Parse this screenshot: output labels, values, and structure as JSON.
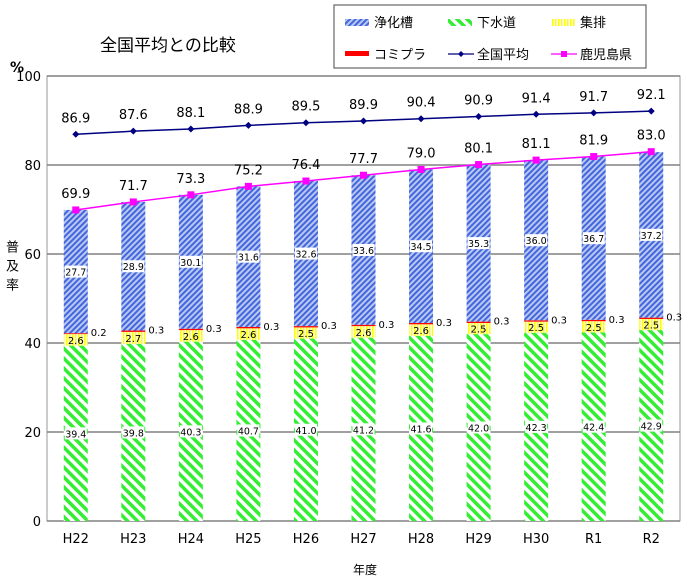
{
  "chart_data": {
    "type": "bar",
    "title": "全国平均との比較",
    "xlabel": "年度",
    "ylabel": "普及率",
    "yunit": "%",
    "ylim": [
      0,
      100
    ],
    "yticks": [
      0,
      20,
      40,
      60,
      80,
      100
    ],
    "grid": true,
    "legend_placement": "top-right",
    "categories": [
      "H22",
      "H23",
      "H24",
      "H25",
      "H26",
      "H27",
      "H28",
      "H29",
      "H30",
      "R1",
      "R2"
    ],
    "stacked_series": [
      {
        "name": "下水道",
        "color": "#33ee33",
        "values": [
          39.4,
          39.8,
          40.3,
          40.7,
          41.0,
          41.2,
          41.6,
          42.0,
          42.3,
          42.4,
          42.9
        ]
      },
      {
        "name": "集排",
        "color": "#ffff00",
        "values": [
          2.6,
          2.7,
          2.6,
          2.6,
          2.5,
          2.6,
          2.6,
          2.5,
          2.5,
          2.5,
          2.5
        ]
      },
      {
        "name": "コミプラ",
        "color": "#ff0000",
        "values": [
          0.2,
          0.3,
          0.3,
          0.3,
          0.3,
          0.3,
          0.3,
          0.3,
          0.3,
          0.3,
          0.3
        ]
      },
      {
        "name": "浄化槽",
        "color": "#4466dd",
        "values": [
          27.7,
          28.9,
          30.1,
          31.6,
          32.6,
          33.6,
          34.5,
          35.3,
          36.0,
          36.7,
          37.2
        ]
      }
    ],
    "line_series": [
      {
        "name": "全国平均",
        "color": "#000080",
        "marker": "diamond",
        "values": [
          86.9,
          87.6,
          88.1,
          88.9,
          89.5,
          89.9,
          90.4,
          90.9,
          91.4,
          91.7,
          92.1
        ]
      },
      {
        "name": "鹿児島県",
        "color": "#ff00ff",
        "marker": "square",
        "values": [
          69.9,
          71.7,
          73.3,
          75.2,
          76.4,
          77.7,
          79.0,
          80.1,
          81.1,
          81.9,
          83.0
        ]
      }
    ]
  }
}
